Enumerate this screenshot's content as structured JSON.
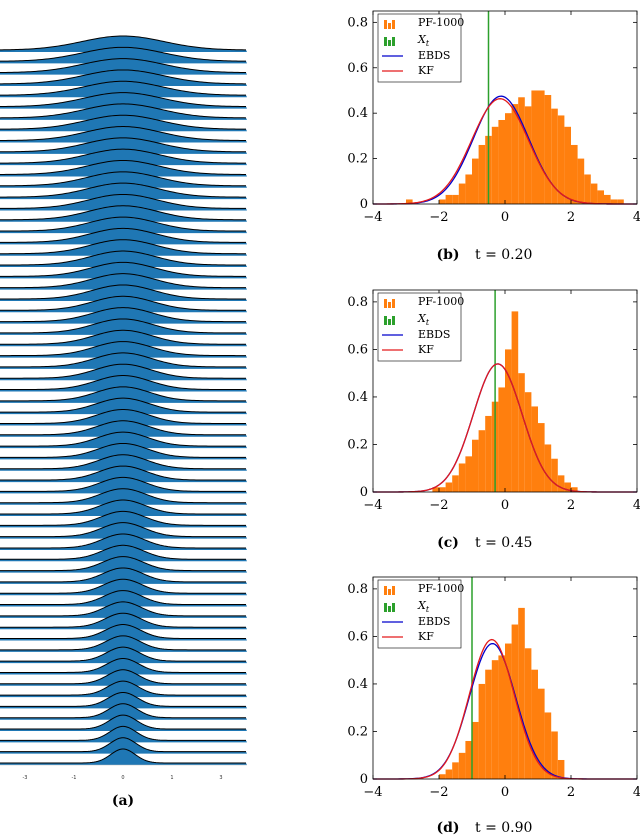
{
  "captions": {
    "a": {
      "label": "(a)"
    },
    "b": {
      "label": "(b)",
      "text": "t = 0.20"
    },
    "c": {
      "label": "(c)",
      "text": "t = 0.45"
    },
    "d": {
      "label": "(d)",
      "text": "t = 0.90"
    }
  },
  "colors": {
    "histogram": "#ff7f0e",
    "xt_line": "#2ca02c",
    "ebds": "#0000cc",
    "kf": "#e31a1c",
    "ridge_fill": "#1f77b4",
    "ridge_line": "#000000"
  },
  "chart_data": [
    {
      "id": "a",
      "type": "area",
      "description_type": "ridgeline",
      "x_ticks": [
        "-3",
        "-1",
        "0",
        "1",
        "3"
      ],
      "num_curves": 64,
      "peak_center": 0,
      "width_top": 1.0,
      "width_bottom": 0.3,
      "grid": false
    },
    {
      "id": "b",
      "type": "bar",
      "xlim": [
        -4,
        4
      ],
      "ylim": [
        0,
        0.85
      ],
      "x_ticks": [
        -4,
        -2,
        0,
        2,
        4
      ],
      "y_ticks": [
        0,
        0.2,
        0.4,
        0.6,
        0.8
      ],
      "legend": [
        "PF-1000",
        "X_t",
        "EBDS",
        "KF"
      ],
      "legend_position": "top-left",
      "xt": -0.5,
      "bin_width": 0.2,
      "bin_start": -3.0,
      "hist": [
        0.02,
        0.0,
        0.0,
        0.0,
        0.0,
        0.02,
        0.04,
        0.04,
        0.09,
        0.13,
        0.2,
        0.26,
        0.3,
        0.34,
        0.37,
        0.4,
        0.44,
        0.47,
        0.43,
        0.5,
        0.5,
        0.48,
        0.42,
        0.39,
        0.34,
        0.26,
        0.2,
        0.13,
        0.09,
        0.06,
        0.04,
        0.02,
        0.02
      ],
      "ebds": {
        "mean": -0.12,
        "sd": 0.84
      },
      "kf": {
        "mean": -0.15,
        "sd": 0.86
      }
    },
    {
      "id": "c",
      "type": "bar",
      "xlim": [
        -4,
        4
      ],
      "ylim": [
        0,
        0.85
      ],
      "x_ticks": [
        -4,
        -2,
        0,
        2,
        4
      ],
      "y_ticks": [
        0,
        0.2,
        0.4,
        0.6,
        0.8
      ],
      "legend": [
        "PF-1000",
        "X_t",
        "EBDS",
        "KF"
      ],
      "legend_position": "top-left",
      "xt": -0.3,
      "bin_width": 0.2,
      "bin_start": -2.2,
      "hist": [
        0.02,
        0.02,
        0.04,
        0.07,
        0.12,
        0.15,
        0.22,
        0.26,
        0.32,
        0.38,
        0.44,
        0.6,
        0.76,
        0.5,
        0.42,
        0.36,
        0.29,
        0.2,
        0.14,
        0.07,
        0.04,
        0.02
      ],
      "ebds": {
        "mean": -0.22,
        "sd": 0.74
      },
      "kf": {
        "mean": -0.22,
        "sd": 0.74
      }
    },
    {
      "id": "d",
      "type": "bar",
      "xlim": [
        -4,
        4
      ],
      "ylim": [
        0,
        0.85
      ],
      "x_ticks": [
        -4,
        -2,
        0,
        2,
        4
      ],
      "y_ticks": [
        0,
        0.2,
        0.4,
        0.6,
        0.8
      ],
      "legend": [
        "PF-1000",
        "X_t",
        "EBDS",
        "KF"
      ],
      "legend_position": "top-left",
      "xt": -1.0,
      "bin_width": 0.2,
      "bin_start": -2.0,
      "hist": [
        0.02,
        0.04,
        0.07,
        0.11,
        0.16,
        0.24,
        0.4,
        0.46,
        0.5,
        0.52,
        0.57,
        0.65,
        0.72,
        0.55,
        0.46,
        0.38,
        0.28,
        0.2,
        0.08
      ],
      "ebds": {
        "mean": -0.38,
        "sd": 0.7
      },
      "kf": {
        "mean": -0.4,
        "sd": 0.68
      }
    }
  ]
}
